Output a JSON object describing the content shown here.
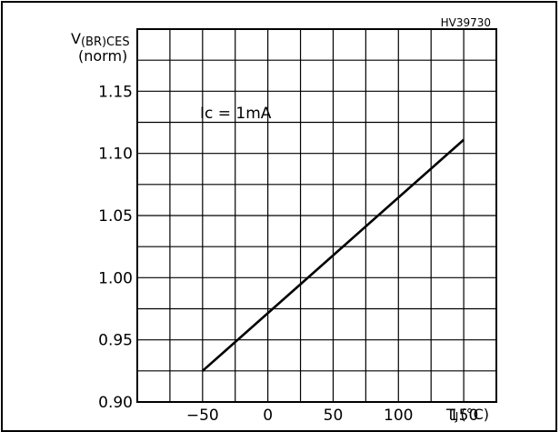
{
  "figure": {
    "reference": "HV39730",
    "ylabel_main": "V",
    "ylabel_sub": "(BR)CES",
    "ylabel_norm": "(norm)",
    "xlabel_main": "T",
    "xlabel_sub": "J",
    "xlabel_unit": "(°C)",
    "annotation": "Ic = 1mA"
  },
  "chart_data": {
    "type": "line",
    "title": "",
    "xlabel": "TJ (°C)",
    "ylabel": "V(BR)CES (norm)",
    "xlim": [
      -100,
      175
    ],
    "ylim": [
      0.9,
      1.2
    ],
    "x_ticks": [
      -50,
      0,
      50,
      100,
      150
    ],
    "x_tick_labels": [
      "−50",
      "0",
      "50",
      "100",
      "150"
    ],
    "y_ticks": [
      0.9,
      0.95,
      1.0,
      1.05,
      1.1,
      1.15
    ],
    "y_tick_labels": [
      "0.90",
      "0.95",
      "1.00",
      "1.05",
      "1.10",
      "1.15"
    ],
    "grid": true,
    "series": [
      {
        "x": [
          -50,
          150
        ],
        "y": [
          0.925,
          1.111
        ]
      }
    ],
    "annotations": [
      "Ic = 1mA"
    ]
  }
}
